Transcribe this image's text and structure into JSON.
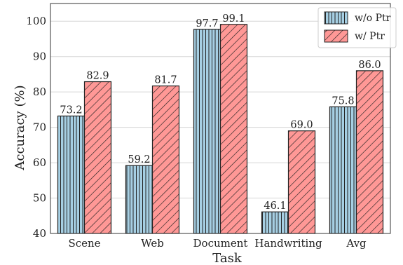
{
  "chart_data": {
    "type": "bar",
    "title": "",
    "xlabel": "Task",
    "ylabel": "Accuracy (%)",
    "categories": [
      "Scene",
      "Web",
      "Document",
      "Handwriting",
      "Avg"
    ],
    "ylim": [
      40,
      105
    ],
    "yticks": [
      40,
      50,
      60,
      70,
      80,
      90,
      100
    ],
    "grid": true,
    "legend_position": "top-right",
    "series": [
      {
        "name": "w/o Ptr",
        "values": [
          73.2,
          59.2,
          97.7,
          46.1,
          75.8
        ],
        "labels": [
          "73.2",
          "59.2",
          "97.7",
          "46.1",
          "75.8"
        ],
        "color": "#a6cfe3",
        "hatch": "vertical"
      },
      {
        "name": "w/ Ptr",
        "values": [
          82.9,
          81.7,
          99.1,
          69.0,
          86.0
        ],
        "labels": [
          "82.9",
          "81.7",
          "99.1",
          "69.0",
          "86.0"
        ],
        "color": "#ff9896",
        "hatch": "diagonal"
      }
    ]
  }
}
